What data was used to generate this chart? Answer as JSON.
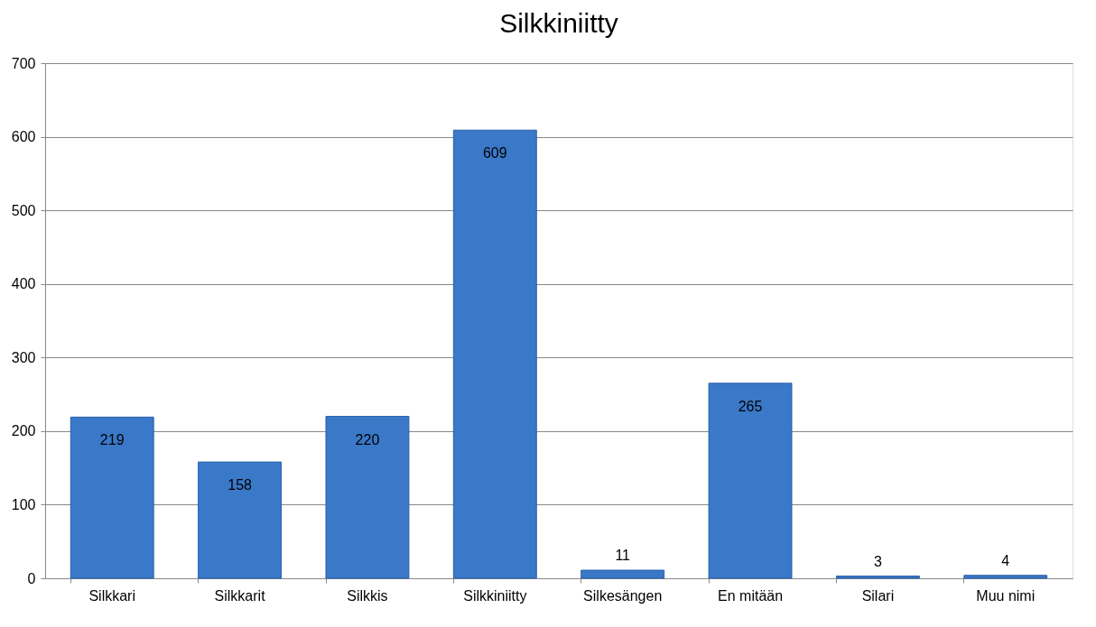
{
  "chart_data": {
    "type": "bar",
    "title": "Silkkiniitty",
    "categories": [
      "Silkkari",
      "Silkkarit",
      "Silkkis",
      "Silkkiniitty",
      "Silkesängen",
      "En mitään",
      "Silari",
      "Muu nimi"
    ],
    "values": [
      219,
      158,
      220,
      609,
      11,
      265,
      3,
      4
    ],
    "color": "#3a78c8",
    "ylim": [
      0,
      700
    ],
    "yticks": [
      0,
      100,
      200,
      300,
      400,
      500,
      600,
      700
    ],
    "grid": "y",
    "data_labels": true
  }
}
